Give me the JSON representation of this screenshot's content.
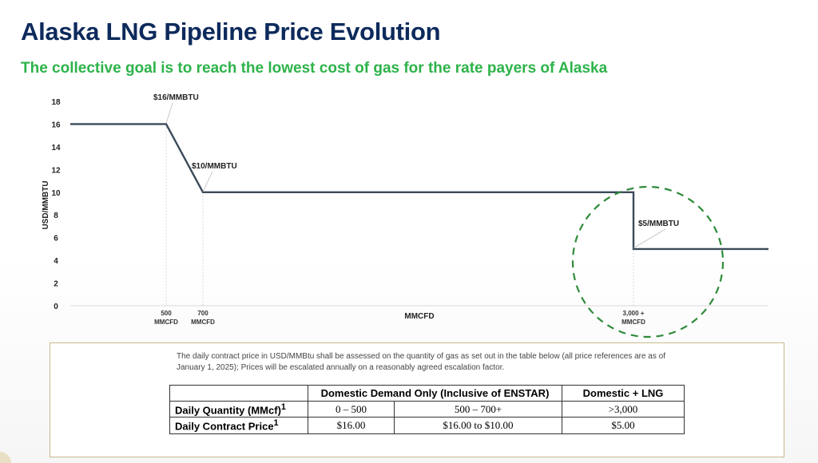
{
  "title": "Alaska LNG Pipeline Price Evolution",
  "subtitle": "The collective goal is to reach the lowest cost of gas for the rate payers of Alaska",
  "chart_data": {
    "type": "line",
    "xlabel": "MMCFD",
    "ylabel": "USD/MMBTU",
    "ylim": [
      0,
      18
    ],
    "yticks": [
      0,
      2,
      4,
      6,
      8,
      10,
      12,
      14,
      16,
      18
    ],
    "grid": false,
    "legend": "none",
    "x_tick_labels": [
      {
        "x": 500,
        "line1": "500",
        "line2": "MMCFD"
      },
      {
        "x": 700,
        "line1": "700",
        "line2": "MMCFD"
      },
      {
        "x": 3000,
        "line1": "3,000 +",
        "line2": "MMCFD"
      }
    ],
    "series": [
      {
        "points": [
          {
            "x": 0,
            "y": 16
          },
          {
            "x": 500,
            "y": 16
          },
          {
            "x": 700,
            "y": 10
          },
          {
            "x": 3000,
            "y": 10
          },
          {
            "x": 3000,
            "y": 5
          },
          {
            "x": 3700,
            "y": 5
          }
        ]
      }
    ],
    "annotations": [
      {
        "x": 500,
        "y": 16,
        "text": "$16/MMBTU"
      },
      {
        "x": 700,
        "y": 10,
        "text": "$10/MMBTU"
      },
      {
        "x": 3000,
        "y": 5,
        "text": "$5/MMBTU"
      }
    ],
    "highlight_circle": {
      "x": 3000,
      "y": 5,
      "color": "#2e8b3a"
    },
    "line_color": "#3b4a5a"
  },
  "table_section": {
    "note": "The daily contract price in USD/MMBtu shall be assessed on the quantity of gas as set out in the table below (all price references are as of January 1, 2025);   Prices will be escalated annually on a reasonably agreed escalation factor.",
    "headers": {
      "domestic": "Domestic Demand Only (Inclusive of ENSTAR)",
      "lng": "Domestic + LNG"
    },
    "rows": [
      {
        "label": "Daily Quantity (MMcf)",
        "sup": "1",
        "cells": [
          "0 – 500",
          "500 – 700+",
          ">3,000"
        ]
      },
      {
        "label": "Daily Contract Price",
        "sup": "1",
        "cells": [
          "$16.00",
          "$16.00 to $10.00",
          "$5.00"
        ]
      }
    ]
  }
}
